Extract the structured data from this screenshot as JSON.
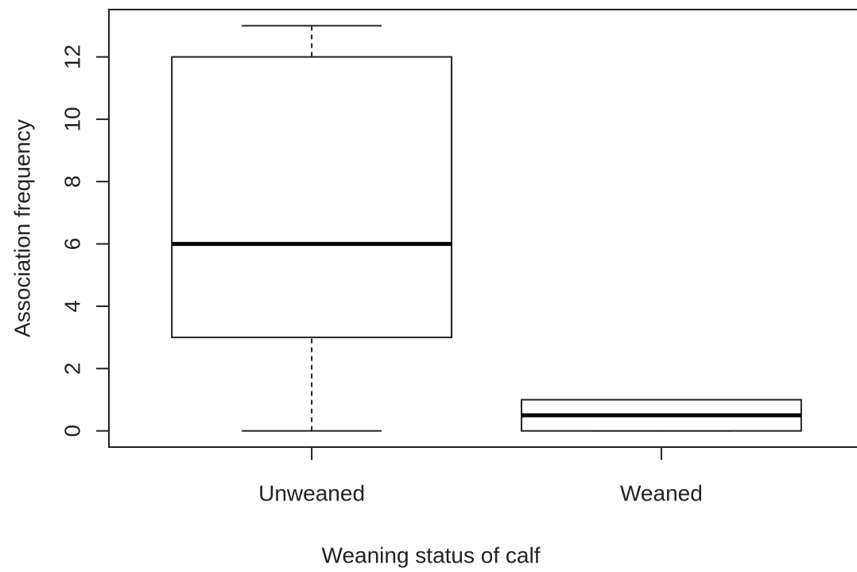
{
  "chart_data": {
    "type": "box",
    "x_label": "Weaning status of calf",
    "y_label": "Association frequency",
    "categories": [
      "Unweaned",
      "Weaned"
    ],
    "boxes": [
      {
        "min": 0,
        "q1": 3,
        "median": 6,
        "q3": 12,
        "max": 13
      },
      {
        "min": 0,
        "q1": 0,
        "median": 0.5,
        "q3": 1,
        "max": 1
      }
    ],
    "color": "#ffffff",
    "ylim": [
      -0.52,
      13.52
    ],
    "yticks": [
      0,
      2,
      4,
      6,
      8,
      10,
      12
    ],
    "grid": false
  }
}
